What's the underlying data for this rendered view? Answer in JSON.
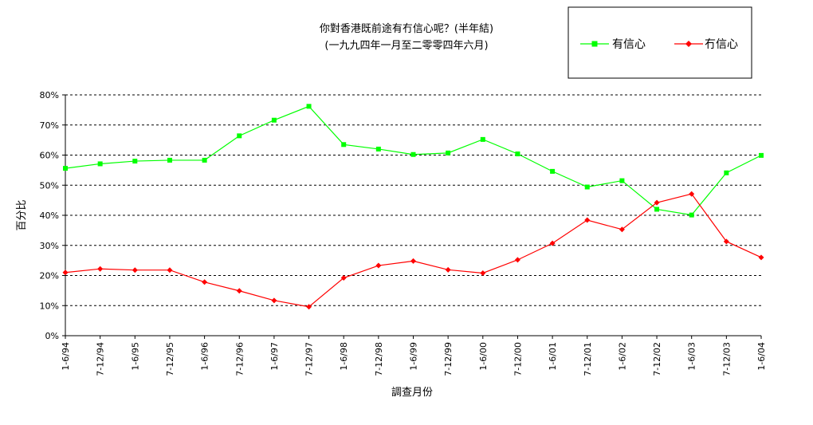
{
  "chart_data": {
    "type": "line",
    "title": "你對香港既前途有冇信心呢？(半年結)",
    "subtitle": "(一九九四年一月至二零零四年六月)",
    "xlabel": "調查月份",
    "ylabel": "百分比",
    "categories": [
      "1-6/94",
      "7-12/94",
      "1-6/95",
      "7-12/95",
      "1-6/96",
      "7-12/96",
      "1-6/97",
      "7-12/97",
      "1-6/98",
      "7-12/98",
      "1-6/99",
      "7-12/99",
      "1-6/00",
      "7-12/00",
      "1-6/01",
      "7-12/01",
      "1-6/02",
      "7-12/02",
      "1-6/03",
      "7-12/03",
      "1-6/04"
    ],
    "y_ticks": [
      "0%",
      "10%",
      "20%",
      "30%",
      "40%",
      "50%",
      "60%",
      "70%",
      "80%"
    ],
    "ylim": [
      0,
      80
    ],
    "grid": true,
    "legend_position": "top-right",
    "series": [
      {
        "name": "有信心",
        "color": "#00ff00",
        "marker": "square",
        "values": [
          55.6,
          57.1,
          58.0,
          58.3,
          58.3,
          66.4,
          71.6,
          76.2,
          63.5,
          62.0,
          60.2,
          60.7,
          65.2,
          60.4,
          54.6,
          49.4,
          51.5,
          42.0,
          40.1,
          54.1,
          59.9
        ]
      },
      {
        "name": "冇信心",
        "color": "#ff0000",
        "marker": "diamond",
        "values": [
          21.0,
          22.2,
          21.8,
          21.8,
          17.8,
          14.9,
          11.7,
          9.6,
          19.2,
          23.3,
          24.8,
          21.9,
          20.8,
          25.2,
          30.7,
          38.4,
          35.3,
          44.2,
          47.1,
          31.3,
          26.0
        ]
      }
    ]
  }
}
